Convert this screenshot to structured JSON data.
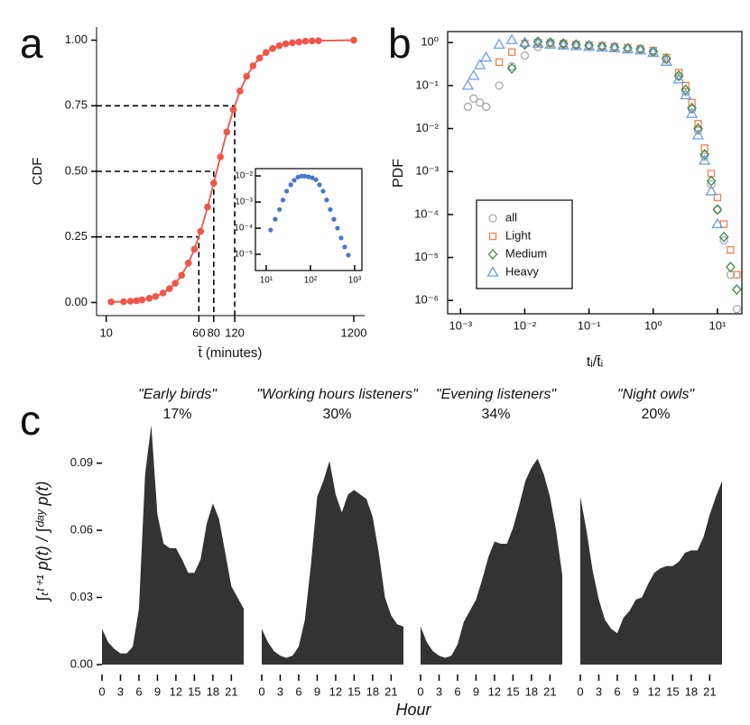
{
  "chart_data": [
    {
      "type": "line",
      "panel_label": "a",
      "xlabel": "t̄ (minutes)",
      "ylabel": "CDF",
      "xscale": "log",
      "color": "#f0554a",
      "x": [
        11,
        14,
        16,
        18,
        20,
        23,
        26,
        30,
        34,
        38,
        43,
        49,
        55,
        62,
        71,
        80,
        91,
        103,
        117,
        133,
        151,
        171,
        194,
        220,
        250,
        284,
        322,
        366,
        415,
        471,
        535,
        607,
        1200
      ],
      "values": [
        0.002,
        0.003,
        0.005,
        0.007,
        0.01,
        0.016,
        0.023,
        0.036,
        0.053,
        0.073,
        0.104,
        0.15,
        0.203,
        0.271,
        0.364,
        0.455,
        0.555,
        0.65,
        0.735,
        0.806,
        0.862,
        0.902,
        0.932,
        0.953,
        0.968,
        0.979,
        0.986,
        0.99,
        0.993,
        0.996,
        0.997,
        0.998,
        1.0
      ],
      "xlim": [
        8.3,
        1480
      ],
      "ylim": [
        -0.05,
        1.05
      ],
      "xticks": [
        10,
        60,
        80,
        120,
        1200
      ],
      "yticks": [
        {
          "value": 0,
          "label": "0.00"
        },
        {
          "value": 0.25,
          "label": "0.25"
        },
        {
          "value": 0.5,
          "label": "0.50"
        },
        {
          "value": 0.75,
          "label": "0.75"
        },
        {
          "value": 1,
          "label": "1.00"
        }
      ],
      "guides": [
        {
          "x": 60,
          "y": 0.25
        },
        {
          "x": 80,
          "y": 0.5
        },
        {
          "x": 120,
          "y": 0.75
        }
      ]
    },
    {
      "type": "scatter",
      "xscale": "log",
      "yscale": "log",
      "color": "#4a74d0",
      "x": [
        12.6,
        16,
        20,
        24,
        29,
        36,
        43,
        52,
        63,
        75,
        91,
        110,
        133,
        160,
        193,
        233,
        281,
        340,
        409,
        494,
        597,
        720
      ],
      "values": [
        8.5e-05,
        0.00022,
        0.00052,
        0.0012,
        0.0026,
        0.0046,
        0.0068,
        0.009,
        0.0098,
        0.0098,
        0.0092,
        0.0085,
        0.0072,
        0.0046,
        0.0026,
        0.0012,
        0.00052,
        0.00022,
        0.0001,
        4.2e-05,
        1.9e-05,
        9.3e-06
      ],
      "xlim": [
        5.7,
        1460
      ],
      "ylim": [
        2.4e-06,
        0.019
      ],
      "xticks": [
        {
          "value": 10,
          "label": "10¹"
        },
        {
          "value": 100,
          "label": "10²"
        },
        {
          "value": 1000,
          "label": "10³"
        }
      ],
      "yticks": [
        {
          "value": 1e-05,
          "label": "10⁻⁵"
        },
        {
          "value": 0.0001,
          "label": "10⁻⁴"
        },
        {
          "value": 0.001,
          "label": "10⁻³"
        },
        {
          "value": 0.01,
          "label": "10⁻²"
        }
      ]
    },
    {
      "type": "scatter",
      "panel_label": "b",
      "xlabel": "tᵢ/t̄ᵢ",
      "ylabel": "PDF",
      "xscale": "log",
      "yscale": "log",
      "legend": "lower left",
      "x": [
        0.0013,
        0.0016,
        0.002,
        0.0025,
        0.004,
        0.0063,
        0.01,
        0.016,
        0.025,
        0.04,
        0.063,
        0.1,
        0.16,
        0.25,
        0.4,
        0.63,
        1,
        1.6,
        2.5,
        3.2,
        4,
        5,
        6.3,
        8,
        10,
        12.6,
        16,
        20
      ],
      "series": [
        {
          "name": "all",
          "color": "#a8a8a8",
          "marker": "circle",
          "values": [
            0.032,
            0.05,
            0.04,
            0.032,
            0.1,
            0.28,
            0.5,
            0.79,
            0.89,
            0.87,
            0.85,
            0.83,
            0.79,
            0.76,
            0.72,
            0.68,
            0.6,
            0.4,
            0.16,
            0.071,
            0.028,
            0.0089,
            0.0022,
            0.0005,
            0.00013,
            2.5e-05,
            4e-06,
            6.3e-07
          ]
        },
        {
          "name": "Light",
          "color": "#f08050",
          "marker": "square",
          "values": [
            null,
            null,
            null,
            null,
            0.35,
            0.6,
            0.95,
            1.0,
            0.98,
            0.95,
            0.9,
            0.87,
            0.84,
            0.8,
            0.76,
            0.72,
            0.65,
            0.45,
            0.2,
            0.1,
            0.04,
            0.013,
            0.0035,
            0.0009,
            0.00025,
            6e-05,
            1.5e-05,
            4e-06
          ]
        },
        {
          "name": "Medium",
          "color": "#3a8a4a",
          "marker": "diamond",
          "values": [
            null,
            null,
            null,
            null,
            null,
            0.25,
            0.9,
            1.05,
            1.0,
            0.95,
            0.9,
            0.86,
            0.82,
            0.78,
            0.74,
            0.7,
            0.62,
            0.42,
            0.17,
            0.08,
            0.03,
            0.01,
            0.0025,
            0.0006,
            0.00013,
            3e-05,
            6e-06,
            1.8e-06
          ]
        },
        {
          "name": "Heavy",
          "color": "#6f9ee0",
          "marker": "triangle",
          "values": [
            0.1,
            0.17,
            0.3,
            0.45,
            0.9,
            1.15,
            1.0,
            0.95,
            0.9,
            0.86,
            0.83,
            0.8,
            0.77,
            0.74,
            0.7,
            0.66,
            0.58,
            0.36,
            0.14,
            0.06,
            0.022,
            0.007,
            0.0018,
            0.00035,
            6e-05,
            null,
            null,
            null
          ]
        }
      ],
      "xlim": [
        0.00063,
        24
      ],
      "ylim": [
        4.9e-07,
        1.8
      ],
      "xticks": [
        {
          "value": 0.001,
          "label": "10⁻³"
        },
        {
          "value": 0.01,
          "label": "10⁻²"
        },
        {
          "value": 0.1,
          "label": "10⁻¹"
        },
        {
          "value": 1,
          "label": "10⁰"
        },
        {
          "value": 10,
          "label": "10¹"
        }
      ],
      "yticks": [
        {
          "value": 1e-06,
          "label": "10⁻⁶"
        },
        {
          "value": 1e-05,
          "label": "10⁻⁵"
        },
        {
          "value": 0.0001,
          "label": "10⁻⁴"
        },
        {
          "value": 0.001,
          "label": "10⁻³"
        },
        {
          "value": 0.01,
          "label": "10⁻²"
        },
        {
          "value": 0.1,
          "label": "10⁻¹"
        },
        {
          "value": 1,
          "label": "10⁰"
        }
      ]
    },
    {
      "type": "area",
      "panel_label": "c",
      "xlabel": "Hour",
      "ylabel": "∫ₜᵗ⁺¹ p(t) / ∫ᵈᵃʸ p(t)",
      "color": "#333333",
      "x": [
        0,
        1,
        2,
        3,
        4,
        5,
        6,
        7,
        8,
        9,
        10,
        11,
        12,
        13,
        14,
        15,
        16,
        17,
        18,
        19,
        20,
        21,
        22,
        23
      ],
      "series": [
        {
          "name": "\"Early birds\"",
          "values": [
            0.016,
            0.01,
            0.007,
            0.005,
            0.005,
            0.008,
            0.025,
            0.085,
            0.107,
            0.067,
            0.054,
            0.052,
            0.052,
            0.047,
            0.041,
            0.041,
            0.047,
            0.063,
            0.072,
            0.065,
            0.05,
            0.035,
            0.03,
            0.025
          ]
        },
        {
          "name": "\"Working hours listeners\"",
          "values": [
            0.016,
            0.01,
            0.006,
            0.004,
            0.003,
            0.004,
            0.008,
            0.02,
            0.045,
            0.075,
            0.082,
            0.091,
            0.076,
            0.068,
            0.076,
            0.078,
            0.076,
            0.074,
            0.066,
            0.05,
            0.03,
            0.022,
            0.018,
            0.017
          ]
        },
        {
          "name": "\"Evening listeners\"",
          "values": [
            0.017,
            0.01,
            0.006,
            0.004,
            0.003,
            0.004,
            0.009,
            0.019,
            0.024,
            0.029,
            0.038,
            0.048,
            0.055,
            0.054,
            0.054,
            0.061,
            0.071,
            0.082,
            0.088,
            0.092,
            0.085,
            0.075,
            0.06,
            0.04
          ]
        },
        {
          "name": "\"Night owls\"",
          "values": [
            0.075,
            0.06,
            0.042,
            0.029,
            0.02,
            0.016,
            0.014,
            0.021,
            0.024,
            0.029,
            0.03,
            0.036,
            0.041,
            0.043,
            0.044,
            0.044,
            0.046,
            0.05,
            0.051,
            0.051,
            0.057,
            0.067,
            0.075,
            0.082
          ]
        }
      ],
      "shares": [
        17,
        30,
        34,
        20
      ],
      "share_labels": [
        "17%",
        "30%",
        "34%",
        "20%"
      ],
      "xlim": [
        0,
        23
      ],
      "ylim": [
        0,
        0.112
      ],
      "xticks": [
        0,
        3,
        6,
        9,
        12,
        15,
        18,
        21
      ],
      "yticks": [
        {
          "value": 0,
          "label": "0.00"
        },
        {
          "value": 0.03,
          "label": "0.03"
        },
        {
          "value": 0.06,
          "label": "0.06"
        },
        {
          "value": 0.09,
          "label": "0.09"
        }
      ]
    }
  ]
}
